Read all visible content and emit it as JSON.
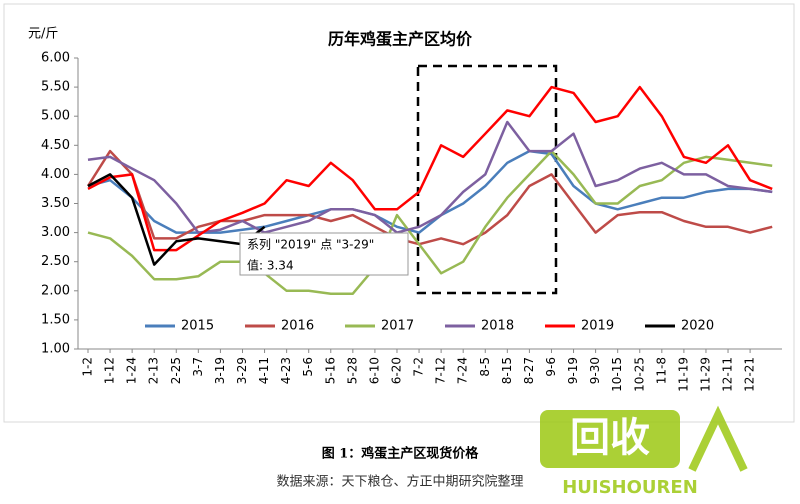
{
  "chart_data": {
    "type": "line",
    "title": "历年鸡蛋主产区均价",
    "y_label": "元/斤",
    "caption": "图 1：鸡蛋主产区现货价格",
    "source": "数据来源：天下粮仓、方正中期研究院整理",
    "watermark_logo": "回收",
    "watermark": "HUISHOUREN",
    "tooltip": {
      "title": "系列 \"2019\" 点 \"3-29\"",
      "value": "值: 3.34"
    },
    "categories": [
      "1-2",
      "1-12",
      "1-24",
      "2-13",
      "2-25",
      "3-7",
      "3-19",
      "3-29",
      "4-11",
      "4-23",
      "5-6",
      "5-16",
      "5-28",
      "6-10",
      "6-20",
      "7-2",
      "7-12",
      "7-24",
      "8-5",
      "8-15",
      "8-27",
      "9-6",
      "9-19",
      "9-30",
      "10-15",
      "10-25",
      "11-8",
      "11-19",
      "11-29",
      "12-11",
      "12-21",
      null
    ],
    "ylim": [
      1,
      6
    ],
    "yticks": [
      {
        "value": 1,
        "label": "1.00"
      },
      {
        "value": 1.5,
        "label": "1.50"
      },
      {
        "value": 2,
        "label": "2.00"
      },
      {
        "value": 2.5,
        "label": "2.50"
      },
      {
        "value": 3,
        "label": "3.00"
      },
      {
        "value": 3.5,
        "label": "3.50"
      },
      {
        "value": 4,
        "label": "4.00"
      },
      {
        "value": 4.5,
        "label": "4.50"
      },
      {
        "value": 5,
        "label": "5.00"
      },
      {
        "value": 5.5,
        "label": "5.50"
      },
      {
        "value": 6,
        "label": "6.00"
      }
    ],
    "grid": false,
    "legend": "bottom",
    "series": [
      {
        "name": "2015",
        "color": "#4a7ebb",
        "values": [
          3.8,
          3.9,
          3.6,
          3.2,
          3.0,
          3.0,
          3.0,
          3.05,
          3.1,
          3.2,
          3.3,
          3.4,
          3.4,
          3.3,
          3.1,
          3.0,
          3.3,
          3.5,
          3.8,
          4.2,
          4.4,
          4.35,
          3.8,
          3.5,
          3.4,
          3.5,
          3.6,
          3.6,
          3.7,
          3.75,
          3.75,
          3.7
        ]
      },
      {
        "name": "2016",
        "color": "#be4b48",
        "values": [
          3.8,
          4.4,
          4.0,
          2.9,
          2.9,
          3.1,
          3.2,
          3.2,
          3.3,
          3.3,
          3.3,
          3.2,
          3.3,
          3.1,
          2.9,
          2.8,
          2.9,
          2.8,
          3.0,
          3.3,
          3.8,
          4.0,
          3.5,
          3.0,
          3.3,
          3.35,
          3.35,
          3.2,
          3.1,
          3.1,
          3.0,
          3.1
        ]
      },
      {
        "name": "2017",
        "color": "#98b954",
        "values": [
          3.0,
          2.9,
          2.6,
          2.2,
          2.2,
          2.25,
          2.5,
          2.5,
          2.3,
          2.0,
          2.0,
          1.95,
          1.95,
          2.4,
          3.3,
          2.8,
          2.3,
          2.5,
          3.1,
          3.6,
          4.0,
          4.4,
          4.0,
          3.5,
          3.5,
          3.8,
          3.9,
          4.2,
          4.3,
          4.25,
          4.2,
          4.15
        ]
      },
      {
        "name": "2018",
        "color": "#7d60a0",
        "values": [
          4.25,
          4.3,
          4.1,
          3.9,
          3.5,
          3.0,
          3.05,
          3.2,
          3.0,
          3.1,
          3.2,
          3.4,
          3.4,
          3.3,
          3.0,
          3.1,
          3.3,
          3.7,
          4.0,
          4.9,
          4.4,
          4.4,
          4.7,
          3.8,
          3.9,
          4.1,
          4.2,
          4.0,
          4.0,
          3.8,
          3.75,
          3.7
        ]
      },
      {
        "name": "2019",
        "color": "#ff0000",
        "values": [
          3.75,
          3.95,
          4.0,
          2.7,
          2.7,
          2.95,
          3.2,
          3.34,
          3.5,
          3.9,
          3.8,
          4.2,
          3.9,
          3.4,
          3.4,
          3.7,
          4.5,
          4.3,
          4.7,
          5.1,
          5.0,
          5.5,
          5.4,
          4.9,
          5.0,
          5.5,
          5.0,
          4.3,
          4.2,
          4.5,
          3.9,
          3.75
        ]
      },
      {
        "name": "2020",
        "color": "#000000",
        "values": [
          3.8,
          4.0,
          3.6,
          2.45,
          2.85,
          2.9,
          2.85,
          2.8,
          3.1,
          null,
          null,
          null,
          null,
          null,
          null,
          null,
          null,
          null,
          null,
          null,
          null,
          null,
          null,
          null,
          null,
          null,
          null,
          null,
          null,
          null,
          null,
          null
        ]
      }
    ]
  }
}
